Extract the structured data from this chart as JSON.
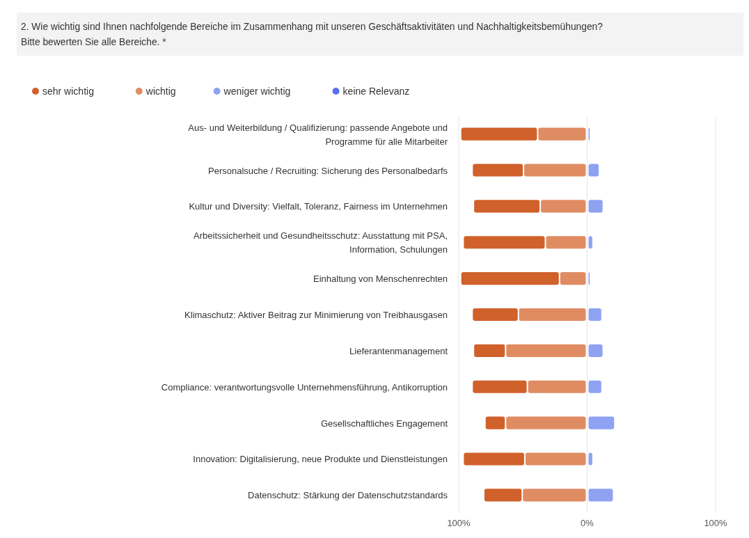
{
  "chart_data": {
    "type": "bar",
    "orientation": "horizontal",
    "stacked": true,
    "title": "2. Wie wichtig sind Ihnen nachfolgende Bereiche im Zusammenhang mit unseren Geschäftsaktivitäten und Nachhaltigkeitsbemühungen? Bitte bewerten Sie alle Bereiche. *",
    "categories": [
      "Aus- und Weiterbildung / Qualifizierung: passende Angebote und Programme für alle Mitarbeiter",
      "Personalsuche / Recruiting: Sicherung des Personalbedarfs",
      "Kultur und Diversity: Vielfalt, Toleranz, Fairness im Unternehmen",
      "Arbeitssicherheit und Gesundheitsschutz: Ausstattung mit PSA, Information, Schulungen",
      "Einhaltung von Menschenrechten",
      "Klimaschutz: Aktiver Beitrag zur Minimierung von Treibhausgasen",
      "Lieferantenmanagement",
      "Compliance: verantwortungsvolle Unternehmensführung, Antikorruption",
      "Gesellschaftliches Engagement",
      "Innovation: Digitalisierung, neue Produkte und Dienstleistungen",
      "Datenschutz: Stärkung der Datenschutzstandards"
    ],
    "series": [
      {
        "name": "wichtig",
        "color": "#e08c63",
        "values": [
          -38,
          -49,
          -36,
          -32,
          -21,
          -53,
          -63,
          -46,
          -63,
          -48,
          -50
        ]
      },
      {
        "name": "sehr wichtig",
        "color": "#d0612a",
        "values": [
          -60,
          -40,
          -52,
          -64,
          -77,
          -36,
          -25,
          -43,
          -16,
          -48,
          -30
        ]
      },
      {
        "name": "weniger wichtig",
        "color": "#8fa2f2",
        "values": [
          2,
          9,
          12,
          4,
          2,
          11,
          12,
          11,
          21,
          4,
          20
        ]
      },
      {
        "name": "keine Relevanz",
        "color": "#5b6ef0",
        "values": [
          0,
          0,
          0,
          0,
          0,
          0,
          0,
          0,
          0,
          0,
          0
        ]
      }
    ],
    "xlim": [
      -100,
      100
    ],
    "xticks": [
      {
        "value": -100,
        "label": "100%"
      },
      {
        "value": 0,
        "label": "0%"
      },
      {
        "value": 100,
        "label": "100%"
      }
    ],
    "grid": "x",
    "legend": "top left"
  }
}
